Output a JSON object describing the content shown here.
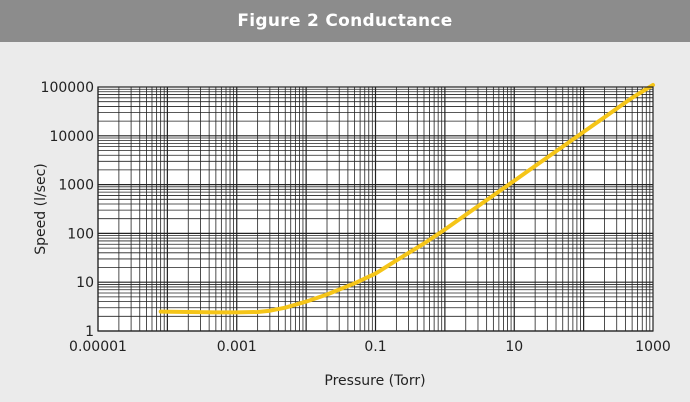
{
  "header": {
    "title": "Figure 2  Conductance"
  },
  "chart_data": {
    "type": "line",
    "title": "Figure 2  Conductance",
    "xlabel": "Pressure (Torr)",
    "ylabel": "Speed (l/sec)",
    "x_scale": "log",
    "y_scale": "log",
    "xlim": [
      1e-05,
      1000
    ],
    "ylim": [
      1,
      100000
    ],
    "x_ticks": [
      {
        "value": 1e-05,
        "label": "0.00001"
      },
      {
        "value": 0.001,
        "label": "0.001"
      },
      {
        "value": 0.1,
        "label": "0.1"
      },
      {
        "value": 10,
        "label": "10"
      },
      {
        "value": 1000,
        "label": "1000"
      }
    ],
    "y_ticks": [
      {
        "value": 1,
        "label": "1"
      },
      {
        "value": 10,
        "label": "10"
      },
      {
        "value": 100,
        "label": "100"
      },
      {
        "value": 1000,
        "label": "1000"
      },
      {
        "value": 10000,
        "label": "10000"
      },
      {
        "value": 100000,
        "label": "100000"
      }
    ],
    "grid": true,
    "series": [
      {
        "color": "#f5c518",
        "x": [
          8e-05,
          0.0002,
          0.0005,
          0.001,
          0.002,
          0.003,
          0.005,
          0.01,
          0.02,
          0.05,
          0.1,
          0.2,
          0.5,
          1,
          2,
          5,
          10,
          20,
          50,
          100,
          200,
          500,
          1000
        ],
        "y": [
          2.5,
          2.45,
          2.4,
          2.4,
          2.45,
          2.6,
          3.0,
          4.0,
          5.6,
          9.5,
          15,
          28,
          62,
          120,
          240,
          600,
          1200,
          2400,
          6000,
          12000,
          24000,
          60000,
          110000
        ]
      }
    ]
  }
}
